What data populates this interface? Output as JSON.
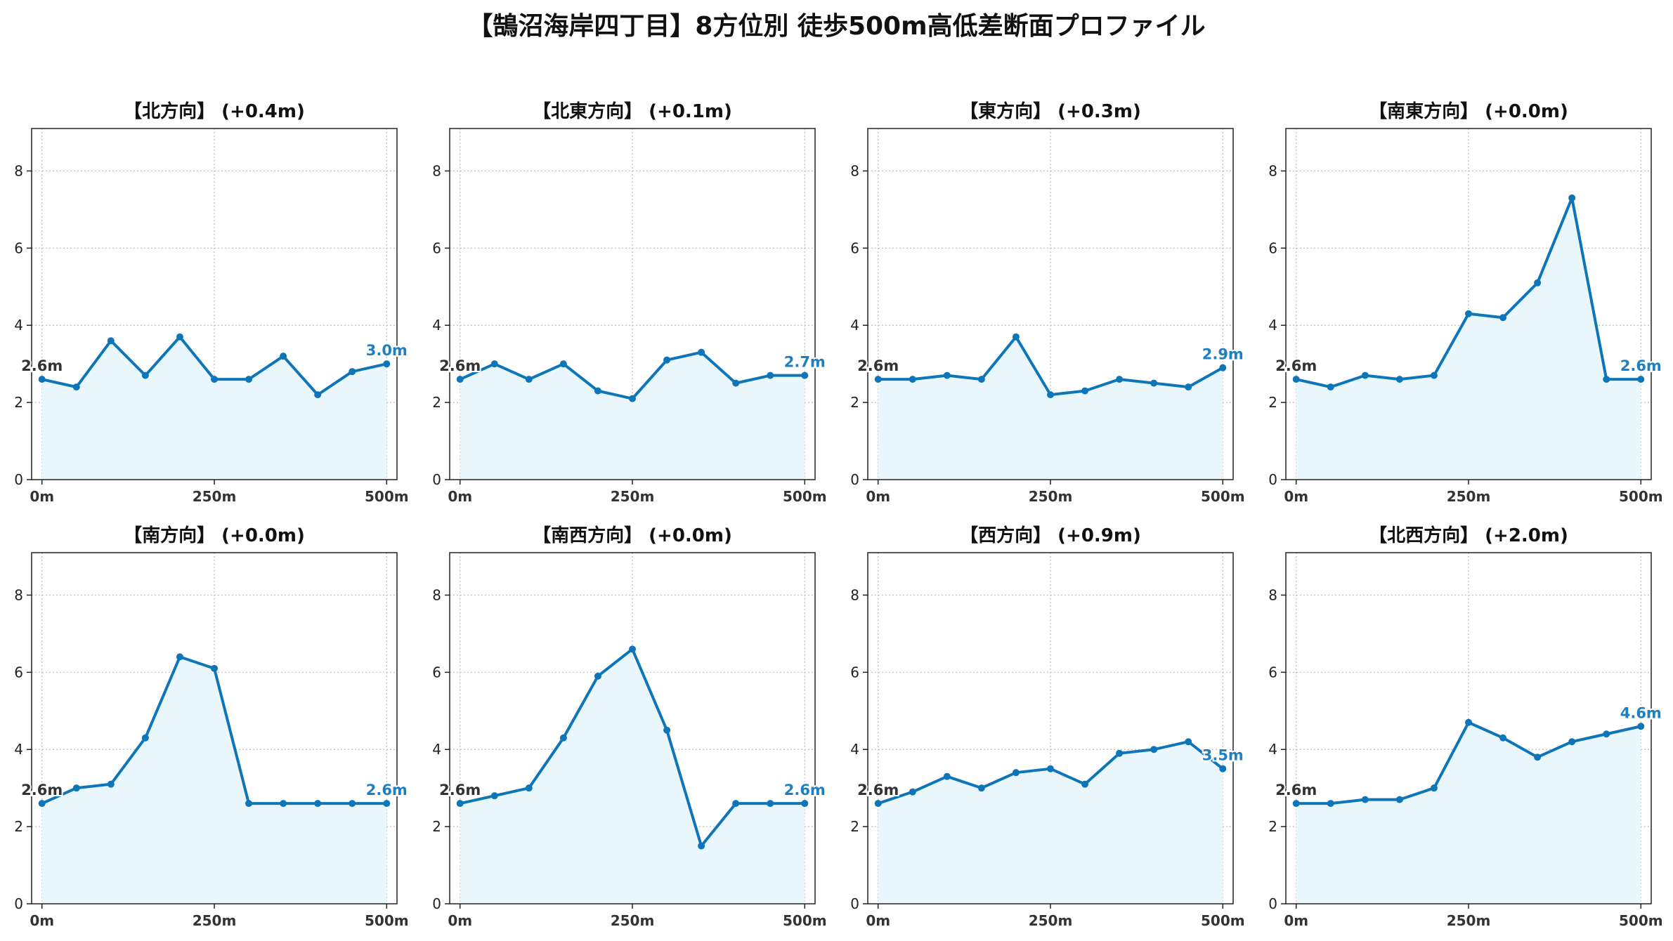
{
  "title": "【鵠沼海岸四丁目】8方位別 徒歩500m高低差断面プロファイル",
  "colors": {
    "line": "#0e76b8",
    "fill": "#e9f6fb",
    "start_label": "#333333",
    "end_label": "#1f7fc0",
    "grid": "#bbbbbb"
  },
  "chart_data": [
    {
      "type": "area",
      "title": "【北方向】 (+0.4m)",
      "x": [
        0,
        50,
        100,
        150,
        200,
        250,
        300,
        350,
        400,
        450,
        500
      ],
      "y": [
        2.6,
        2.4,
        3.6,
        2.7,
        3.7,
        2.6,
        2.6,
        3.2,
        2.2,
        2.8,
        3.0
      ],
      "ylim": [
        0,
        9.1
      ],
      "yticks": [
        0,
        2,
        4,
        6,
        8
      ],
      "xticks": [
        0,
        250,
        500
      ],
      "xtick_labels": [
        "0m",
        "250m",
        "500m"
      ],
      "start_label": "2.6m",
      "end_label": "3.0m",
      "grid": true
    },
    {
      "type": "area",
      "title": "【北東方向】 (+0.1m)",
      "x": [
        0,
        50,
        100,
        150,
        200,
        250,
        300,
        350,
        400,
        450,
        500
      ],
      "y": [
        2.6,
        3.0,
        2.6,
        3.0,
        2.3,
        2.1,
        3.1,
        3.3,
        2.5,
        2.7,
        2.7
      ],
      "ylim": [
        0,
        9.1
      ],
      "yticks": [
        0,
        2,
        4,
        6,
        8
      ],
      "xticks": [
        0,
        250,
        500
      ],
      "xtick_labels": [
        "0m",
        "250m",
        "500m"
      ],
      "start_label": "2.6m",
      "end_label": "2.7m",
      "grid": true
    },
    {
      "type": "area",
      "title": "【東方向】 (+0.3m)",
      "x": [
        0,
        50,
        100,
        150,
        200,
        250,
        300,
        350,
        400,
        450,
        500
      ],
      "y": [
        2.6,
        2.6,
        2.7,
        2.6,
        3.7,
        2.2,
        2.3,
        2.6,
        2.5,
        2.4,
        2.9
      ],
      "ylim": [
        0,
        9.1
      ],
      "yticks": [
        0,
        2,
        4,
        6,
        8
      ],
      "xticks": [
        0,
        250,
        500
      ],
      "xtick_labels": [
        "0m",
        "250m",
        "500m"
      ],
      "start_label": "2.6m",
      "end_label": "2.9m",
      "grid": true
    },
    {
      "type": "area",
      "title": "【南東方向】 (+0.0m)",
      "x": [
        0,
        50,
        100,
        150,
        200,
        250,
        300,
        350,
        400,
        450,
        500
      ],
      "y": [
        2.6,
        2.4,
        2.7,
        2.6,
        2.7,
        4.3,
        4.2,
        5.1,
        7.3,
        2.6,
        2.6
      ],
      "ylim": [
        0,
        9.1
      ],
      "yticks": [
        0,
        2,
        4,
        6,
        8
      ],
      "xticks": [
        0,
        250,
        500
      ],
      "xtick_labels": [
        "0m",
        "250m",
        "500m"
      ],
      "start_label": "2.6m",
      "end_label": "2.6m",
      "grid": true
    },
    {
      "type": "area",
      "title": "【南方向】 (+0.0m)",
      "x": [
        0,
        50,
        100,
        150,
        200,
        250,
        300,
        350,
        400,
        450,
        500
      ],
      "y": [
        2.6,
        3.0,
        3.1,
        4.3,
        6.4,
        6.1,
        2.6,
        2.6,
        2.6,
        2.6,
        2.6
      ],
      "ylim": [
        0,
        9.1
      ],
      "yticks": [
        0,
        2,
        4,
        6,
        8
      ],
      "xticks": [
        0,
        250,
        500
      ],
      "xtick_labels": [
        "0m",
        "250m",
        "500m"
      ],
      "start_label": "2.6m",
      "end_label": "2.6m",
      "grid": true
    },
    {
      "type": "area",
      "title": "【南西方向】 (+0.0m)",
      "x": [
        0,
        50,
        100,
        150,
        200,
        250,
        300,
        350,
        400,
        450,
        500
      ],
      "y": [
        2.6,
        2.8,
        3.0,
        4.3,
        5.9,
        6.6,
        4.5,
        1.5,
        2.6,
        2.6,
        2.6
      ],
      "ylim": [
        0,
        9.1
      ],
      "yticks": [
        0,
        2,
        4,
        6,
        8
      ],
      "xticks": [
        0,
        250,
        500
      ],
      "xtick_labels": [
        "0m",
        "250m",
        "500m"
      ],
      "start_label": "2.6m",
      "end_label": "2.6m",
      "grid": true
    },
    {
      "type": "area",
      "title": "【西方向】 (+0.9m)",
      "x": [
        0,
        50,
        100,
        150,
        200,
        250,
        300,
        350,
        400,
        450,
        500
      ],
      "y": [
        2.6,
        2.9,
        3.3,
        3.0,
        3.4,
        3.5,
        3.1,
        3.9,
        4.0,
        4.2,
        3.5
      ],
      "ylim": [
        0,
        9.1
      ],
      "yticks": [
        0,
        2,
        4,
        6,
        8
      ],
      "xticks": [
        0,
        250,
        500
      ],
      "xtick_labels": [
        "0m",
        "250m",
        "500m"
      ],
      "start_label": "2.6m",
      "end_label": "3.5m",
      "grid": true
    },
    {
      "type": "area",
      "title": "【北西方向】 (+2.0m)",
      "x": [
        0,
        50,
        100,
        150,
        200,
        250,
        300,
        350,
        400,
        450,
        500
      ],
      "y": [
        2.6,
        2.6,
        2.7,
        2.7,
        3.0,
        4.7,
        4.3,
        3.8,
        4.2,
        4.4,
        4.6
      ],
      "ylim": [
        0,
        9.1
      ],
      "yticks": [
        0,
        2,
        4,
        6,
        8
      ],
      "xticks": [
        0,
        250,
        500
      ],
      "xtick_labels": [
        "0m",
        "250m",
        "500m"
      ],
      "start_label": "2.6m",
      "end_label": "4.6m",
      "grid": true
    }
  ]
}
